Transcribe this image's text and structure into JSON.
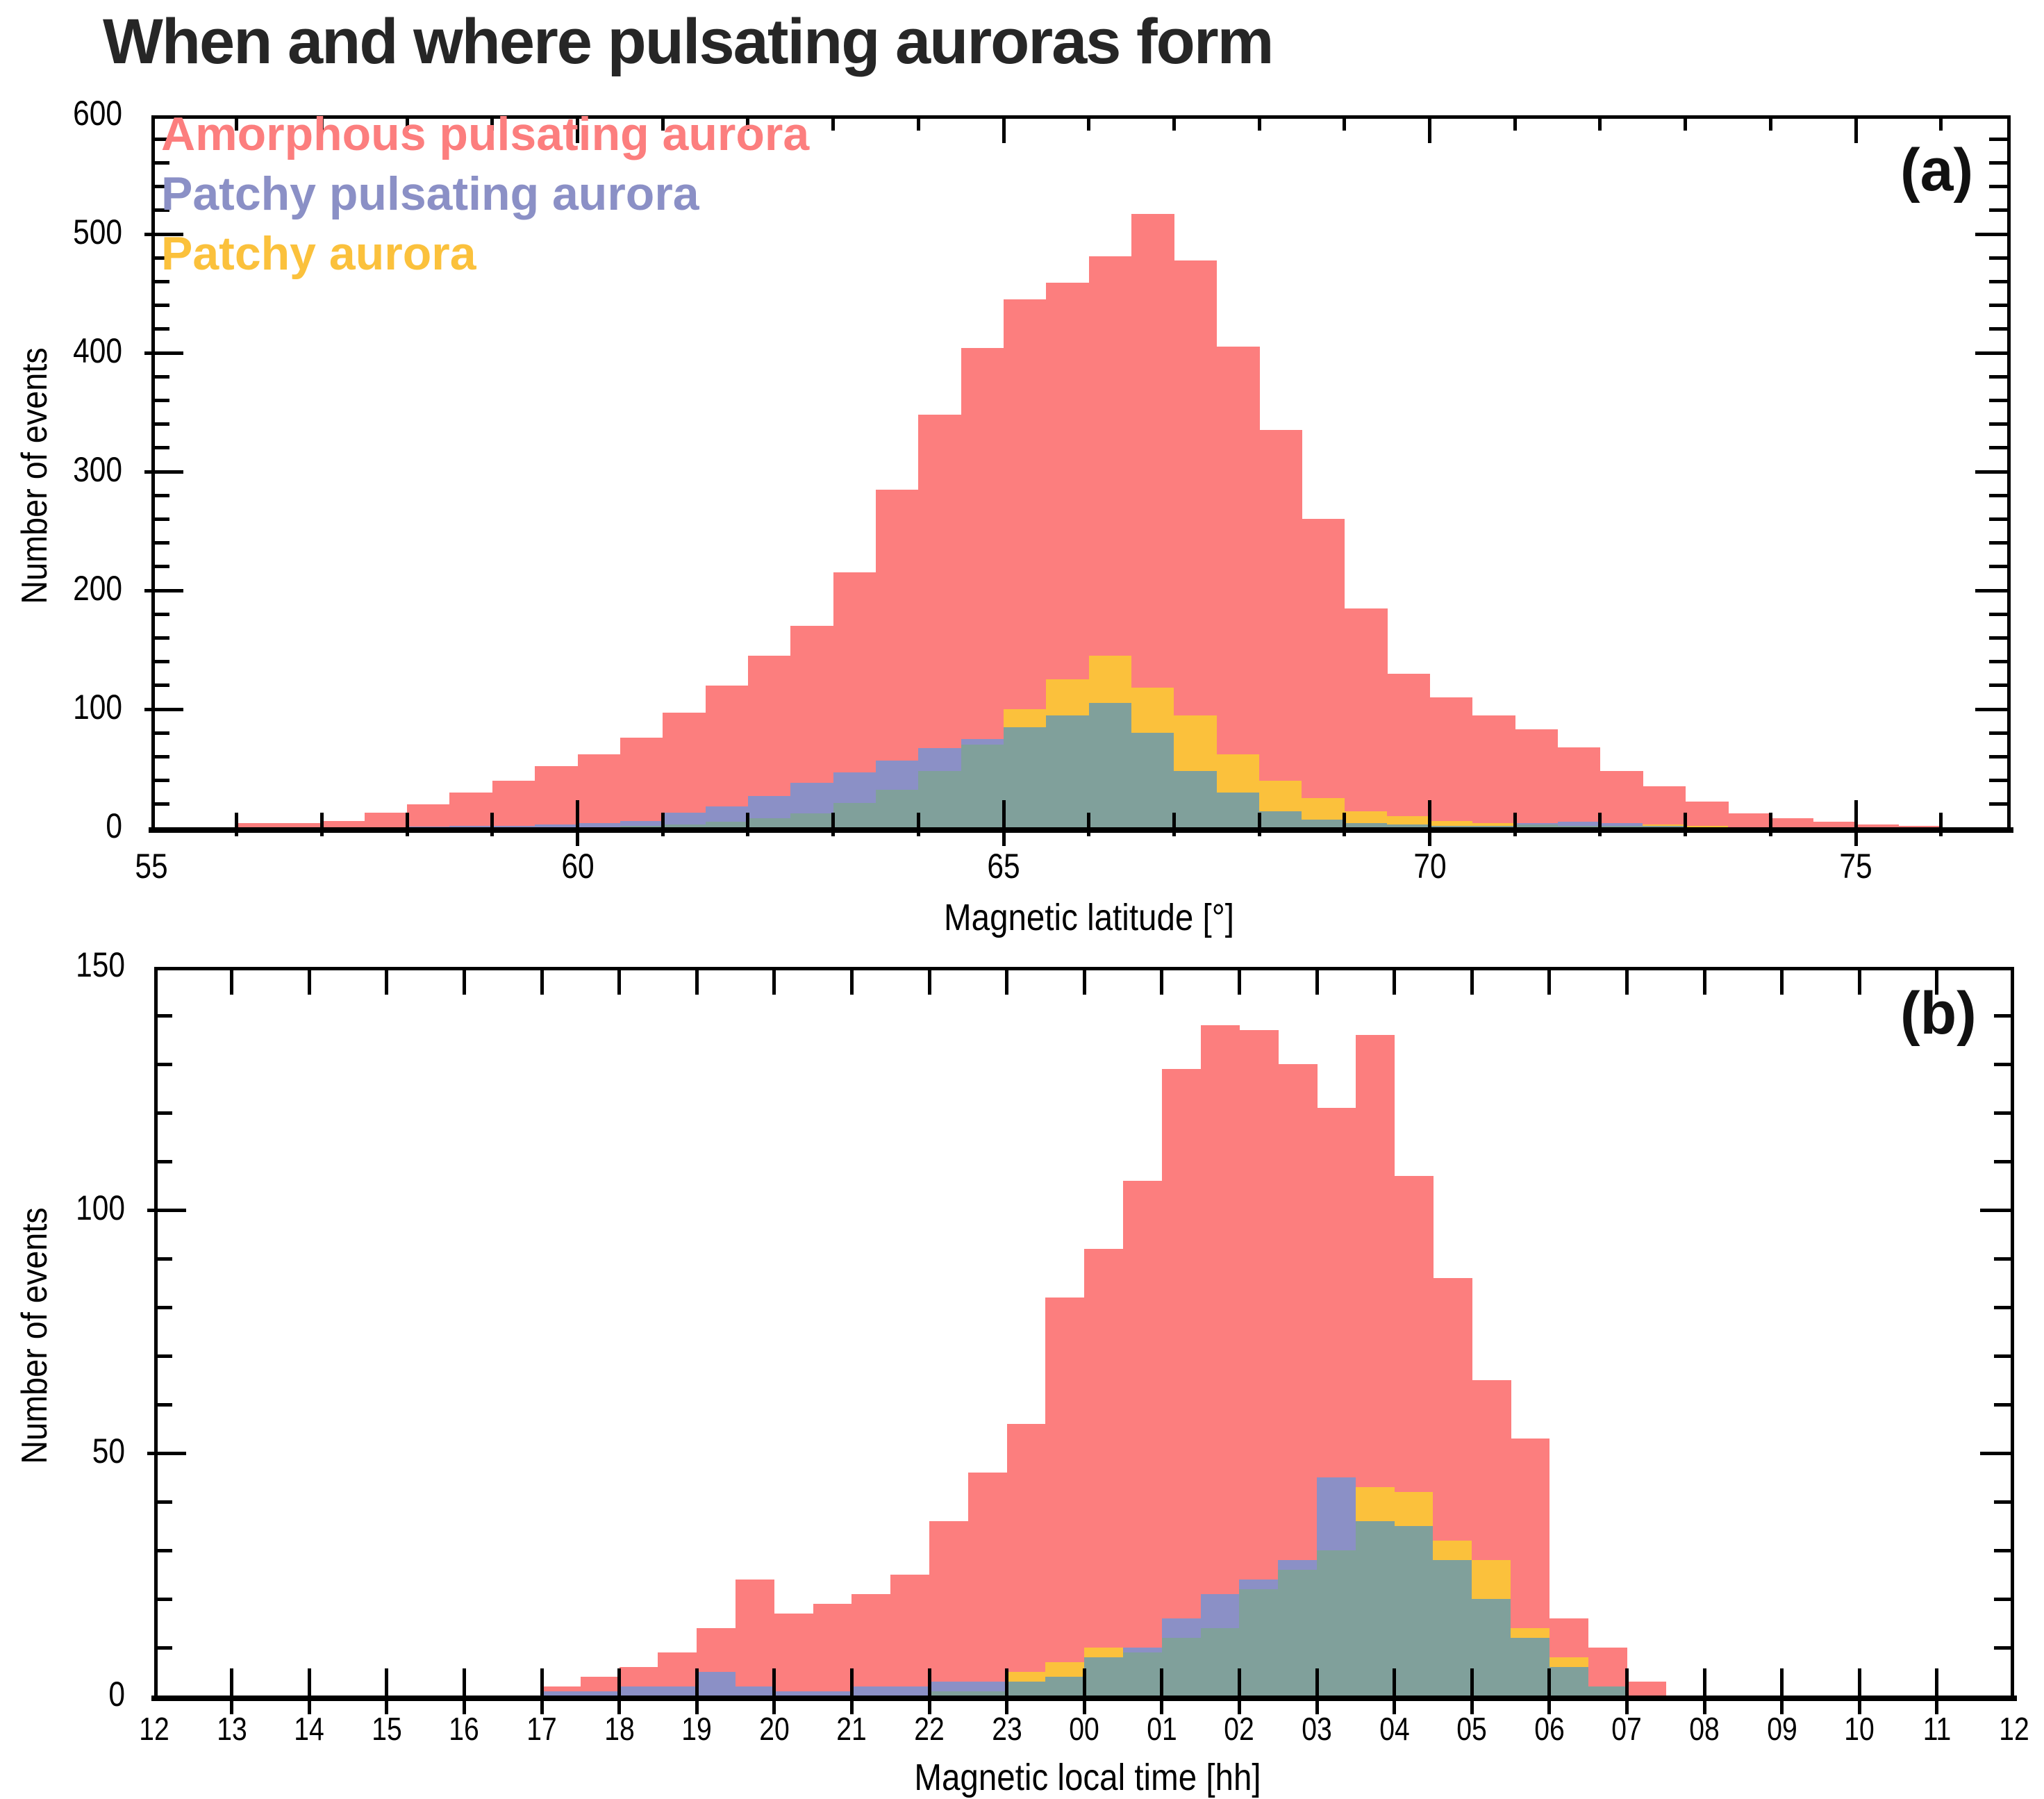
{
  "title": "When and where pulsating auroras form",
  "colors": {
    "amorphous": "#FC7E7E",
    "patchy_pulsating": "#8B90C6",
    "patchy": "#FBC13C",
    "overlap": "#80A09B",
    "title_text": "#262626",
    "axis": "#000000"
  },
  "legend": [
    {
      "label": "Amorphous pulsating aurora",
      "series": "amorphous",
      "color": "#FC7E7E"
    },
    {
      "label": "Patchy pulsating aurora",
      "series": "patchy_pulsating",
      "color": "#8B90C6"
    },
    {
      "label": "Patchy aurora",
      "series": "patchy",
      "color": "#FBC13C"
    }
  ],
  "chart_data": [
    {
      "type": "bar",
      "panel_label": "(a)",
      "ylabel": "Number of events",
      "xlabel": "Magnetic latitude [°]",
      "x_range": [
        55,
        76.8
      ],
      "ylim": [
        0,
        600
      ],
      "x_tick_labels": [
        "55",
        "60",
        "65",
        "70",
        "75"
      ],
      "x_tick_values": [
        55,
        60,
        65,
        70,
        75
      ],
      "x_minor_step": 1,
      "y_tick_labels": [
        "0",
        "100",
        "200",
        "300",
        "400",
        "500",
        "600"
      ],
      "y_tick_values": [
        0,
        100,
        200,
        300,
        400,
        500,
        600
      ],
      "y_minor_step": 20,
      "bin_start": 56.0,
      "bin_width": 0.5,
      "grid": false,
      "legend_position": "top-left",
      "series": [
        {
          "name": "Amorphous pulsating aurora",
          "key": "amorphous",
          "values": [
            4,
            4,
            6,
            13,
            20,
            30,
            40,
            52,
            62,
            76,
            97,
            120,
            145,
            170,
            215,
            285,
            348,
            404,
            445,
            459,
            481,
            517,
            478,
            405,
            335,
            260,
            185,
            130,
            110,
            95,
            83,
            68,
            48,
            35,
            22,
            12,
            8,
            5,
            3,
            2
          ]
        },
        {
          "name": "Patchy pulsating aurora",
          "key": "patchy_pulsating",
          "values": [
            0,
            0,
            0,
            0,
            1,
            2,
            2,
            3,
            4,
            6,
            13,
            18,
            27,
            38,
            47,
            57,
            67,
            75,
            85,
            95,
            105,
            80,
            48,
            30,
            14,
            7,
            4,
            3,
            2,
            2,
            4,
            5,
            4,
            2,
            0,
            0,
            0,
            0,
            0,
            0
          ]
        },
        {
          "name": "Patchy aurora",
          "key": "patchy",
          "values": [
            0,
            0,
            0,
            0,
            0,
            0,
            0,
            0,
            0,
            2,
            3,
            5,
            8,
            12,
            21,
            32,
            48,
            70,
            100,
            125,
            145,
            118,
            95,
            62,
            40,
            25,
            14,
            10,
            6,
            4,
            3,
            2,
            2,
            3,
            2,
            0,
            0,
            0,
            0,
            0
          ]
        }
      ]
    },
    {
      "type": "bar",
      "panel_label": "(b)",
      "ylabel": "Number of events",
      "xlabel": "Magnetic local time [hh]",
      "x_range": [
        12,
        36
      ],
      "ylim": [
        0,
        150
      ],
      "x_tick_labels": [
        "12",
        "13",
        "14",
        "15",
        "16",
        "17",
        "18",
        "19",
        "20",
        "21",
        "22",
        "23",
        "00",
        "01",
        "02",
        "03",
        "04",
        "05",
        "06",
        "07",
        "08",
        "09",
        "10",
        "11",
        "12"
      ],
      "x_tick_values": [
        12,
        13,
        14,
        15,
        16,
        17,
        18,
        19,
        20,
        21,
        22,
        23,
        24,
        25,
        26,
        27,
        28,
        29,
        30,
        31,
        32,
        33,
        34,
        35,
        36
      ],
      "x_minor_step": 1,
      "y_tick_labels": [
        "0",
        "50",
        "100",
        "150"
      ],
      "y_tick_values": [
        0,
        50,
        100,
        150
      ],
      "y_minor_step": 10,
      "bin_start": 17.0,
      "bin_width": 0.5,
      "grid": false,
      "series": [
        {
          "name": "Amorphous pulsating aurora",
          "key": "amorphous",
          "values": [
            2,
            4,
            6,
            9,
            14,
            24,
            17,
            19,
            21,
            25,
            36,
            46,
            56,
            82,
            92,
            106,
            129,
            138,
            137,
            130,
            121,
            136,
            107,
            86,
            65,
            53,
            16,
            10,
            3
          ]
        },
        {
          "name": "Patchy pulsating aurora",
          "key": "patchy_pulsating",
          "values": [
            1,
            1,
            2,
            2,
            5,
            2,
            1,
            1,
            2,
            2,
            3,
            3,
            3,
            4,
            8,
            10,
            16,
            21,
            24,
            28,
            45,
            36,
            35,
            28,
            20,
            12,
            6,
            2,
            0
          ]
        },
        {
          "name": "Patchy aurora",
          "key": "patchy",
          "values": [
            0,
            0,
            0,
            0,
            0,
            0,
            0,
            0,
            0,
            0,
            1,
            1,
            5,
            7,
            10,
            9,
            12,
            14,
            22,
            26,
            30,
            43,
            42,
            32,
            28,
            14,
            8,
            2,
            0
          ]
        }
      ]
    }
  ]
}
